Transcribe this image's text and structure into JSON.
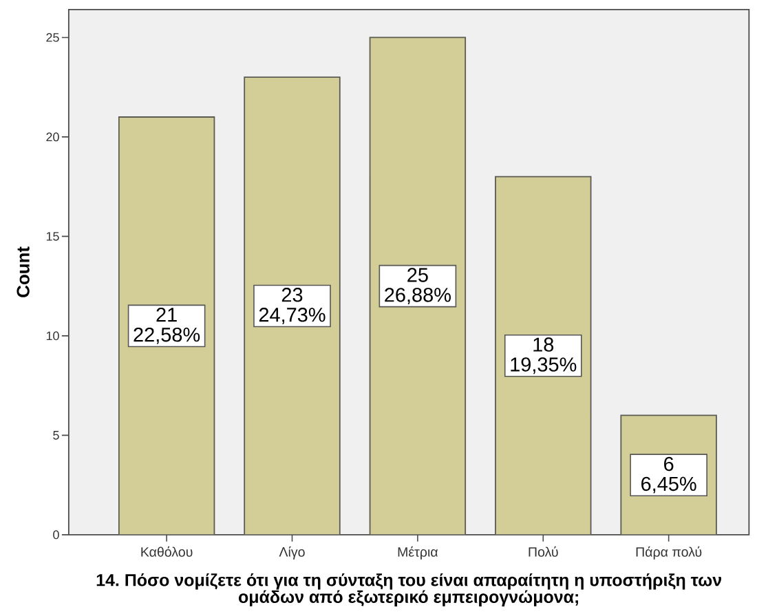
{
  "chart_data": {
    "type": "bar",
    "xlabel": "14. Πόσο νομίζετε ότι για τη σύνταξη του είναι απαραίτητη η υποστήριξη των ομάδων από εξωτερικό εμπειρογνώμονα;",
    "ylabel": "Count",
    "categories": [
      "Καθόλου",
      "Λίγο",
      "Μέτρια",
      "Πολύ",
      "Πάρα πολύ"
    ],
    "values": [
      21,
      23,
      25,
      18,
      6
    ],
    "color": "#d3ce97",
    "ylim": [
      0,
      26.4
    ],
    "yticks": [
      0,
      5,
      10,
      15,
      20,
      25
    ],
    "value_labels": [
      "21 22,58%",
      "23 24,73%",
      "25 26,88%",
      "18 19,35%",
      "6 6,45%"
    ]
  }
}
